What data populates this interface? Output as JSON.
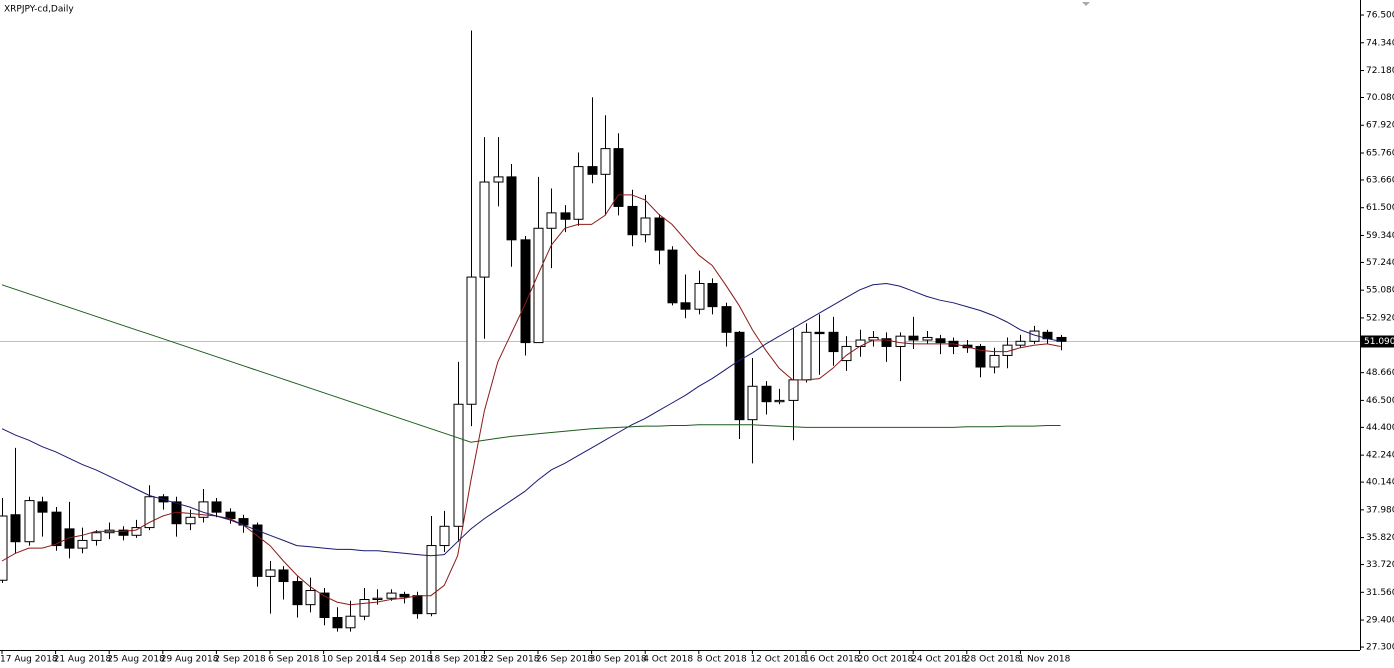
{
  "chart_data": {
    "type": "candlestick",
    "title": "XRPJPY-cd,Daily",
    "categories": [
      "17 Aug 2018",
      null,
      null,
      null,
      "21 Aug 2018",
      null,
      null,
      null,
      "25 Aug 2018",
      null,
      null,
      null,
      "29 Aug 2018",
      null,
      null,
      null,
      "2 Sep 2018",
      null,
      null,
      null,
      "6 Sep 2018",
      null,
      null,
      null,
      "10 Sep 2018",
      null,
      null,
      null,
      "14 Sep 2018",
      null,
      null,
      null,
      "18 Sep 2018",
      null,
      null,
      null,
      "22 Sep 2018",
      null,
      null,
      null,
      "26 Sep 2018",
      null,
      null,
      null,
      "30 Sep 2018",
      null,
      null,
      null,
      "4 Oct 2018",
      null,
      null,
      null,
      "8 Oct 2018",
      null,
      null,
      null,
      "12 Oct 2018",
      null,
      null,
      null,
      "16 Oct 2018",
      null,
      null,
      null,
      "20 Oct 2018",
      null,
      null,
      null,
      "24 Oct 2018",
      null,
      null,
      null,
      "28 Oct 2018",
      null,
      null,
      null,
      "1 Nov 2018",
      null,
      null,
      null
    ],
    "open": [
      32.5,
      37.6,
      35.5,
      38.6,
      37.8,
      36.5,
      35.0,
      35.6,
      36.2,
      36.4,
      36.0,
      36.6,
      39.0,
      38.6,
      36.9,
      37.4,
      38.6,
      37.8,
      37.3,
      36.8,
      32.8,
      33.3,
      32.4,
      30.6,
      31.5,
      29.6,
      28.8,
      29.7,
      31.0,
      31.1,
      31.4,
      31.3,
      29.9,
      35.2,
      36.7,
      46.2,
      56.1,
      63.5,
      63.9,
      59.0,
      51.0,
      59.9,
      61.1,
      60.6,
      64.7,
      64.1,
      66.1,
      61.6,
      59.4,
      60.7,
      58.2,
      54.1,
      53.6,
      55.6,
      53.8,
      51.8,
      45.0,
      47.6,
      46.4,
      46.5,
      48.1,
      51.8,
      51.8,
      49.6,
      50.7,
      51.2,
      51.3,
      50.7,
      51.5,
      51.2,
      51.3,
      51.1,
      50.8,
      50.7,
      49.1,
      50.0,
      50.8,
      51.1,
      51.8,
      51.4
    ],
    "high": [
      38.9,
      42.8,
      39.0,
      39.0,
      38.2,
      38.6,
      36.6,
      36.4,
      37.0,
      36.7,
      37.2,
      39.9,
      39.2,
      39.0,
      38.0,
      39.6,
      38.9,
      38.1,
      37.6,
      37.0,
      34.0,
      33.6,
      32.8,
      32.7,
      31.9,
      30.4,
      30.9,
      31.9,
      31.8,
      31.8,
      31.6,
      31.6,
      37.5,
      37.9,
      49.5,
      75.3,
      67.0,
      67.0,
      64.9,
      59.3,
      63.9,
      63.0,
      61.7,
      65.8,
      70.1,
      68.7,
      67.3,
      62.9,
      62.5,
      61.0,
      58.5,
      56.3,
      56.6,
      56.0,
      54.1,
      51.9,
      49.8,
      48.0,
      47.4,
      52.1,
      52.5,
      53.2,
      53.0,
      51.5,
      52.0,
      51.9,
      51.8,
      51.8,
      53.0,
      51.9,
      51.6,
      51.4,
      51.2,
      50.9,
      50.6,
      51.4,
      51.6,
      52.3,
      52.0,
      51.6
    ],
    "low": [
      32.3,
      34.6,
      35.2,
      35.9,
      34.8,
      34.2,
      34.6,
      35.2,
      35.7,
      35.6,
      35.8,
      36.4,
      38.0,
      35.9,
      36.4,
      37.0,
      37.4,
      36.9,
      36.2,
      32.0,
      29.9,
      31.0,
      29.6,
      30.0,
      29.0,
      28.5,
      28.5,
      29.4,
      30.6,
      30.9,
      30.7,
      29.5,
      29.7,
      34.7,
      35.5,
      44.5,
      51.3,
      61.6,
      56.9,
      50.0,
      51.0,
      56.8,
      59.6,
      60.1,
      63.4,
      60.9,
      60.9,
      58.5,
      58.8,
      57.1,
      53.9,
      52.9,
      53.2,
      53.2,
      50.7,
      43.5,
      41.6,
      45.4,
      46.2,
      43.4,
      47.9,
      48.5,
      49.2,
      48.8,
      49.9,
      50.7,
      49.5,
      48.0,
      50.5,
      50.9,
      50.1,
      50.1,
      50.2,
      48.3,
      48.6,
      49.0,
      50.6,
      50.9,
      50.9,
      50.4
    ],
    "close": [
      37.5,
      35.5,
      38.7,
      37.8,
      35.2,
      35.0,
      35.6,
      36.2,
      36.4,
      36.0,
      36.6,
      39.0,
      38.6,
      36.9,
      37.4,
      38.6,
      37.8,
      37.3,
      36.8,
      32.8,
      33.3,
      32.4,
      30.6,
      31.7,
      29.6,
      28.8,
      29.7,
      31.0,
      31.1,
      31.5,
      31.2,
      29.9,
      35.2,
      36.7,
      46.2,
      56.1,
      63.5,
      63.9,
      59.0,
      51.0,
      59.9,
      61.1,
      60.6,
      64.7,
      64.1,
      66.1,
      61.6,
      59.4,
      60.7,
      58.2,
      54.1,
      53.6,
      55.6,
      53.8,
      51.8,
      45.0,
      47.6,
      46.4,
      46.5,
      48.1,
      51.8,
      51.7,
      50.3,
      50.7,
      51.2,
      51.4,
      50.7,
      51.5,
      51.2,
      51.4,
      51.0,
      50.7,
      50.6,
      49.1,
      50.0,
      50.8,
      51.1,
      51.9,
      51.3,
      51.1
    ],
    "up_color": "#ffffff",
    "down_color": "#000000",
    "lines": [
      {
        "color": "#8b1a1a",
        "values": [
          34.0,
          34.6,
          35.0,
          35.0,
          35.3,
          35.8,
          36.0,
          36.3,
          36.3,
          36.3,
          36.4,
          37.0,
          37.5,
          37.8,
          37.7,
          37.6,
          37.5,
          37.3,
          36.8,
          36.0,
          35.2,
          34.0,
          32.9,
          32.0,
          31.3,
          30.8,
          30.6,
          30.7,
          30.8,
          31.0,
          31.1,
          31.3,
          31.3,
          32.1,
          34.4,
          40.3,
          45.7,
          49.5,
          51.7,
          53.9,
          56.3,
          58.6,
          59.9,
          60.2,
          60.2,
          60.9,
          62.5,
          62.5,
          62.1,
          61.0,
          60.2,
          59.0,
          57.8,
          57.0,
          55.5,
          53.9,
          52.0,
          50.4,
          49.0,
          48.1,
          48.1,
          48.2,
          49.0,
          50.0,
          50.7,
          51.2,
          51.2,
          51.0,
          50.9,
          50.9,
          50.9,
          50.9,
          50.7,
          50.4,
          50.3,
          50.3,
          50.6,
          50.8,
          50.9,
          50.7
        ]
      },
      {
        "color": "#191970",
        "values": [
          44.3,
          43.8,
          43.4,
          42.9,
          42.5,
          42.0,
          41.5,
          41.1,
          40.6,
          40.1,
          39.6,
          39.1,
          38.8,
          38.5,
          38.2,
          37.8,
          37.5,
          37.2,
          36.8,
          36.4,
          36.0,
          35.6,
          35.2,
          35.1,
          35.0,
          34.9,
          34.9,
          34.8,
          34.8,
          34.7,
          34.6,
          34.5,
          34.4,
          34.5,
          35.5,
          36.5,
          37.3,
          38.0,
          38.7,
          39.4,
          40.3,
          41.1,
          41.6,
          42.2,
          42.8,
          43.4,
          44.0,
          44.6,
          45.1,
          45.7,
          46.3,
          46.9,
          47.6,
          48.2,
          48.9,
          49.6,
          50.2,
          50.9,
          51.5,
          52.1,
          52.7,
          53.3,
          53.9,
          54.5,
          55.1,
          55.5,
          55.6,
          55.4,
          55.0,
          54.6,
          54.3,
          54.1,
          53.8,
          53.5,
          53.1,
          52.6,
          52.0,
          51.6,
          51.3,
          51.1
        ]
      },
      {
        "color": "#1e5a1e",
        "values": [
          55.5,
          55.15,
          54.8,
          54.45,
          54.1,
          53.75,
          53.4,
          53.05,
          52.7,
          52.35,
          52.0,
          51.65,
          51.3,
          50.95,
          50.6,
          50.25,
          49.9,
          49.55,
          49.2,
          48.85,
          48.5,
          48.15,
          47.8,
          47.45,
          47.1,
          46.75,
          46.4,
          46.05,
          45.7,
          45.35,
          45.0,
          44.65,
          44.3,
          43.95,
          43.6,
          43.25,
          43.4,
          43.55,
          43.7,
          43.8,
          43.9,
          44.0,
          44.1,
          44.2,
          44.3,
          44.35,
          44.4,
          44.45,
          44.5,
          44.5,
          44.55,
          44.55,
          44.6,
          44.6,
          44.6,
          44.6,
          44.6,
          44.55,
          44.5,
          44.45,
          44.4,
          44.4,
          44.4,
          44.4,
          44.4,
          44.4,
          44.4,
          44.4,
          44.4,
          44.4,
          44.4,
          44.4,
          44.45,
          44.45,
          44.45,
          44.5,
          44.5,
          44.5,
          44.55,
          44.55
        ]
      }
    ],
    "current_price": {
      "value": 51.09,
      "label": "51.090"
    },
    "ylim": [
      27.07,
      77.67
    ],
    "yticks": [
      {
        "value": 76.5,
        "label": "76.500"
      },
      {
        "value": 74.34,
        "label": "74.340"
      },
      {
        "value": 72.18,
        "label": "72.180"
      },
      {
        "value": 70.08,
        "label": "70.080"
      },
      {
        "value": 67.92,
        "label": "67.920"
      },
      {
        "value": 65.76,
        "label": "65.760"
      },
      {
        "value": 63.66,
        "label": "63.660"
      },
      {
        "value": 61.5,
        "label": "61.500"
      },
      {
        "value": 59.34,
        "label": "59.340"
      },
      {
        "value": 57.24,
        "label": "57.240"
      },
      {
        "value": 55.08,
        "label": "55.080"
      },
      {
        "value": 52.92,
        "label": "52.920"
      },
      {
        "value": 48.66,
        "label": "48.660"
      },
      {
        "value": 46.5,
        "label": "46.500"
      },
      {
        "value": 44.4,
        "label": "44.400"
      },
      {
        "value": 42.24,
        "label": "42.240"
      },
      {
        "value": 40.14,
        "label": "40.140"
      },
      {
        "value": 37.98,
        "label": "37.980"
      },
      {
        "value": 35.82,
        "label": "35.820"
      },
      {
        "value": 33.72,
        "label": "33.720"
      },
      {
        "value": 31.56,
        "label": "31.560"
      },
      {
        "value": 29.4,
        "label": "29.400"
      },
      {
        "value": 27.3,
        "label": "27.300"
      }
    ],
    "grid": false
  }
}
